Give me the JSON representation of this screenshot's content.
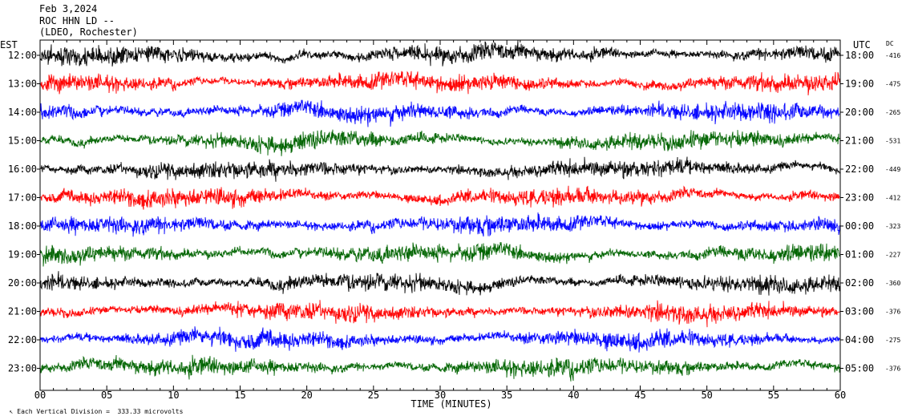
{
  "header": {
    "date": "Feb 3,2024",
    "station": "ROC HHN LD --",
    "network": "(LDEO, Rochester)"
  },
  "left_tz": "EST",
  "right_tz": "UTC",
  "dc_header": "DC",
  "scale_note": "Each Vertical Division =  333.33 microvolts",
  "scale_marker": "↖",
  "colors": {
    "black": "#000000",
    "red": "#ff0000",
    "blue": "#0000ff",
    "green": "#006400"
  },
  "chart_data": {
    "type": "line",
    "xlabel": "TIME (MINUTES)",
    "xlim": [
      0,
      60
    ],
    "x_ticks": [
      "00",
      "05",
      "10",
      "15",
      "20",
      "25",
      "30",
      "35",
      "40",
      "45",
      "50",
      "55",
      "60"
    ],
    "color_cycle": [
      "black",
      "red",
      "blue",
      "green"
    ],
    "rows": [
      {
        "est": "12:00",
        "utc": "18:00",
        "dc": "-416"
      },
      {
        "est": "13:00",
        "utc": "19:00",
        "dc": "-475"
      },
      {
        "est": "14:00",
        "utc": "20:00",
        "dc": "-265"
      },
      {
        "est": "15:00",
        "utc": "21:00",
        "dc": "-531"
      },
      {
        "est": "16:00",
        "utc": "22:00",
        "dc": "-449"
      },
      {
        "est": "17:00",
        "utc": "23:00",
        "dc": "-412"
      },
      {
        "est": "18:00",
        "utc": "00:00",
        "dc": "-323"
      },
      {
        "est": "19:00",
        "utc": "01:00",
        "dc": "-227"
      },
      {
        "est": "20:00",
        "utc": "02:00",
        "dc": "-360"
      },
      {
        "est": "21:00",
        "utc": "03:00",
        "dc": "-376"
      },
      {
        "est": "22:00",
        "utc": "04:00",
        "dc": "-275"
      },
      {
        "est": "23:00",
        "utc": "05:00",
        "dc": "-376"
      }
    ]
  }
}
